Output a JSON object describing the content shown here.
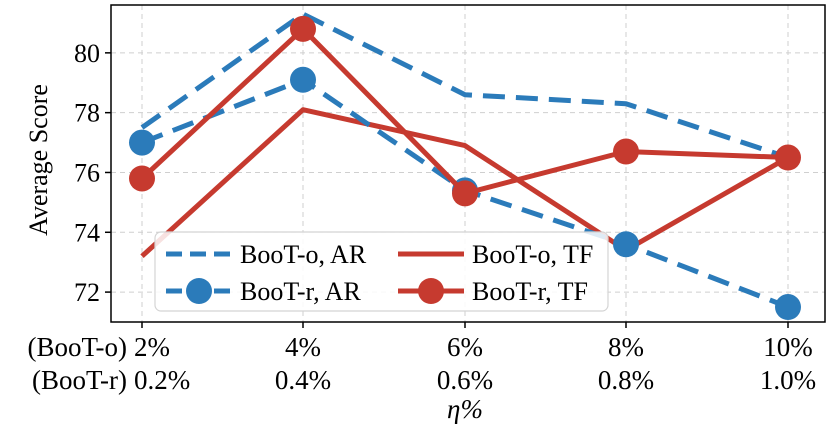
{
  "chart_data": {
    "type": "line",
    "title": "",
    "xlabel": "η%",
    "ylabel": "Average Score",
    "ylim": [
      71.0,
      81.6
    ],
    "yticks": [
      72,
      74,
      76,
      78,
      80
    ],
    "grid": true,
    "legend_position": "lower-left",
    "x": [
      0,
      1,
      2,
      3,
      4
    ],
    "x_tick_labels_row1": [
      "2%",
      "4%",
      "6%",
      "8%",
      "10%"
    ],
    "x_tick_labels_row2": [
      "0.2%",
      "0.4%",
      "0.6%",
      "0.8%",
      "1.0%"
    ],
    "row_labels": [
      "(BooT-o)",
      "(BooT-r)"
    ],
    "series": [
      {
        "name": "BooT-o, AR",
        "color": "#2b7bba",
        "dash": true,
        "marker": false,
        "values": [
          77.5,
          81.3,
          78.6,
          78.3,
          76.5
        ]
      },
      {
        "name": "BooT-o, TF",
        "color": "#c63a2f",
        "dash": false,
        "marker": false,
        "values": [
          73.2,
          78.1,
          76.9,
          73.4,
          76.5
        ]
      },
      {
        "name": "BooT-r, AR",
        "color": "#2b7bba",
        "dash": true,
        "marker": true,
        "values": [
          77.0,
          79.1,
          75.4,
          73.6,
          71.5
        ]
      },
      {
        "name": "BooT-r, TF",
        "color": "#c63a2f",
        "dash": false,
        "marker": true,
        "values": [
          75.8,
          80.8,
          75.3,
          76.7,
          76.5
        ]
      }
    ]
  }
}
